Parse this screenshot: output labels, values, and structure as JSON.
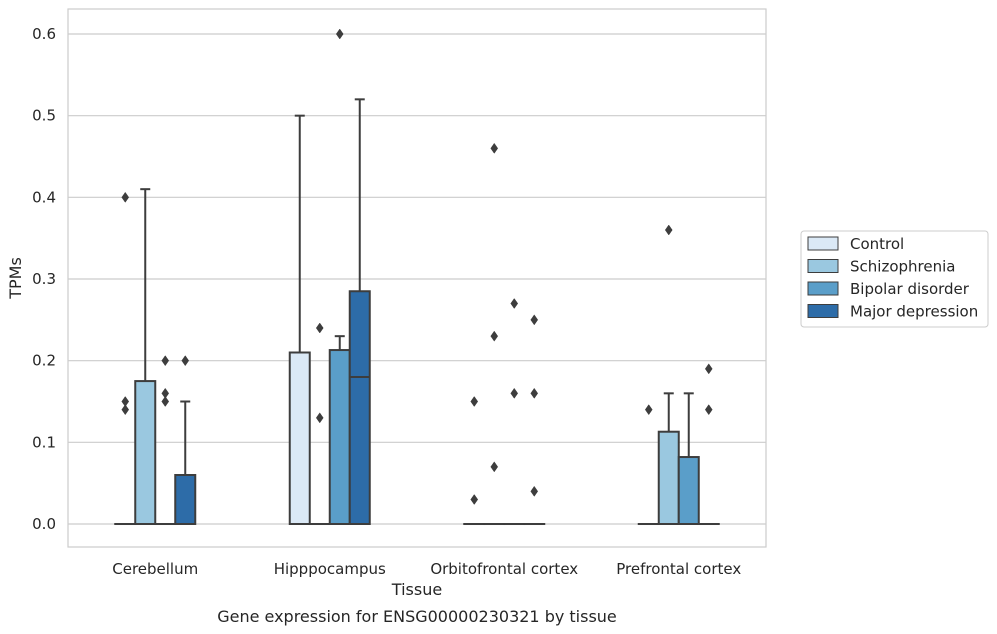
{
  "chart_data": {
    "type": "box",
    "title": "",
    "caption": "Gene expression for ENSG00000230321 by tissue",
    "xlabel": "Tissue",
    "ylabel": "TPMs",
    "ylim": [
      -0.03,
      0.63
    ],
    "yticks": [
      "0.0",
      "0.1",
      "0.2",
      "0.3",
      "0.4",
      "0.5",
      "0.6"
    ],
    "grid": "horizontal",
    "legend_position": "right",
    "categories": [
      "Cerebellum",
      "Hipppocampus",
      "Orbitofrontal cortex",
      "Prefrontal cortex"
    ],
    "series": [
      {
        "name": "Control",
        "color": "#dbe9f6",
        "boxes": [
          {
            "q1": 0,
            "median": 0,
            "q3": 0,
            "whisker_low": 0,
            "whisker_high": 0,
            "outliers": [
              0.15,
              0.14,
              0.4
            ]
          },
          {
            "q1": 0,
            "median": 0,
            "q3": 0.21,
            "whisker_low": 0,
            "whisker_high": 0.5,
            "outliers": []
          },
          {
            "q1": 0,
            "median": 0,
            "q3": 0,
            "whisker_low": 0,
            "whisker_high": 0,
            "outliers": [
              0.15,
              0.03
            ]
          },
          {
            "q1": 0,
            "median": 0,
            "q3": 0,
            "whisker_low": 0,
            "whisker_high": 0,
            "outliers": [
              0.14
            ]
          }
        ]
      },
      {
        "name": "Schizophrenia",
        "color": "#9ac8e0",
        "boxes": [
          {
            "q1": 0,
            "median": 0,
            "q3": 0.175,
            "whisker_low": 0,
            "whisker_high": 0.41,
            "outliers": []
          },
          {
            "q1": 0,
            "median": 0,
            "q3": 0,
            "whisker_low": 0,
            "whisker_high": 0,
            "outliers": [
              0.24,
              0.13
            ]
          },
          {
            "q1": 0,
            "median": 0,
            "q3": 0,
            "whisker_low": 0,
            "whisker_high": 0,
            "outliers": [
              0.46,
              0.23,
              0.07
            ]
          },
          {
            "q1": 0,
            "median": 0,
            "q3": 0.113,
            "whisker_low": 0,
            "whisker_high": 0.16,
            "outliers": [
              0.36
            ]
          }
        ]
      },
      {
        "name": "Bipolar disorder",
        "color": "#5a9ec9",
        "boxes": [
          {
            "q1": 0,
            "median": 0,
            "q3": 0,
            "whisker_low": 0,
            "whisker_high": 0,
            "outliers": [
              0.2,
              0.16,
              0.15
            ]
          },
          {
            "q1": 0,
            "median": 0,
            "q3": 0.213,
            "whisker_low": 0,
            "whisker_high": 0.23,
            "outliers": [
              0.6
            ]
          },
          {
            "q1": 0,
            "median": 0,
            "q3": 0,
            "whisker_low": 0,
            "whisker_high": 0,
            "outliers": [
              0.27,
              0.16
            ]
          },
          {
            "q1": 0,
            "median": 0,
            "q3": 0.082,
            "whisker_low": 0,
            "whisker_high": 0.16,
            "outliers": []
          }
        ]
      },
      {
        "name": "Major depression",
        "color": "#2d6ca8",
        "boxes": [
          {
            "q1": 0,
            "median": 0,
            "q3": 0.06,
            "whisker_low": 0,
            "whisker_high": 0.15,
            "outliers": [
              0.2
            ]
          },
          {
            "q1": 0,
            "median": 0.18,
            "q3": 0.285,
            "whisker_low": 0,
            "whisker_high": 0.52,
            "outliers": []
          },
          {
            "q1": 0,
            "median": 0,
            "q3": 0,
            "whisker_low": 0,
            "whisker_high": 0,
            "outliers": [
              0.25,
              0.16,
              0.04
            ]
          },
          {
            "q1": 0,
            "median": 0,
            "q3": 0,
            "whisker_low": 0,
            "whisker_high": 0,
            "outliers": [
              0.19,
              0.14
            ]
          }
        ]
      }
    ]
  }
}
